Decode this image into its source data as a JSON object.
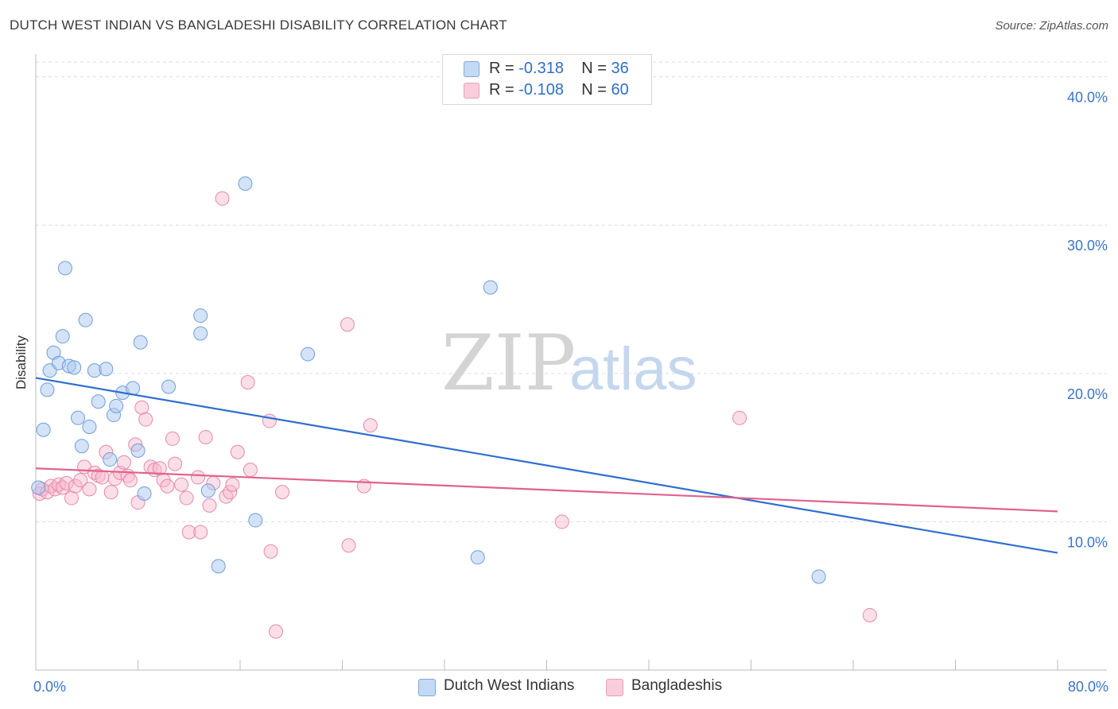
{
  "title": "DUTCH WEST INDIAN VS BANGLADESHI DISABILITY CORRELATION CHART",
  "source": "Source: ZipAtlas.com",
  "watermark": {
    "zip": "ZIP",
    "atlas": "atlas"
  },
  "legend": {
    "series1": {
      "r_label": "R =",
      "r_value": "-0.318",
      "n_label": "N =",
      "n_value": "36"
    },
    "series2": {
      "r_label": "R =",
      "r_value": "-0.108",
      "n_label": "N =",
      "n_value": "60"
    }
  },
  "colors": {
    "blue_fill": "#a9c8f0",
    "blue_stroke": "#6f9fd8",
    "blue_line": "#2f6fcf",
    "pink_fill": "#f6b8cb",
    "pink_stroke": "#e889a8",
    "pink_line": "#e0628e",
    "axis_label": "#3b74c8",
    "grid": "#dcdcdc"
  },
  "chart_data": {
    "type": "scatter",
    "title": "DUTCH WEST INDIAN VS BANGLADESHI DISABILITY CORRELATION CHART",
    "xlabel": "",
    "ylabel": "Disability",
    "xlim": [
      0,
      80
    ],
    "ylim": [
      0,
      41
    ],
    "x_tick_labels": [
      "0.0%",
      "80.0%"
    ],
    "y_ticks": [
      10,
      20,
      30,
      40
    ],
    "y_tick_labels": [
      "10.0%",
      "20.0%",
      "30.0%",
      "40.0%"
    ],
    "grid": true,
    "legend_position": "top-center",
    "series": [
      {
        "name": "Dutch West Indians",
        "color": "#a9c8f0",
        "trend": {
          "x": [
            0,
            80
          ],
          "y": [
            19.7,
            7.9
          ]
        },
        "points": [
          {
            "x": 0.2,
            "y": 12.3
          },
          {
            "x": 0.6,
            "y": 16.2
          },
          {
            "x": 0.9,
            "y": 18.9
          },
          {
            "x": 1.1,
            "y": 20.2
          },
          {
            "x": 1.4,
            "y": 21.4
          },
          {
            "x": 1.8,
            "y": 20.7
          },
          {
            "x": 2.1,
            "y": 22.5
          },
          {
            "x": 2.3,
            "y": 27.1
          },
          {
            "x": 2.6,
            "y": 20.5
          },
          {
            "x": 3.0,
            "y": 20.4
          },
          {
            "x": 3.3,
            "y": 17.0
          },
          {
            "x": 3.6,
            "y": 15.1
          },
          {
            "x": 3.9,
            "y": 23.6
          },
          {
            "x": 4.2,
            "y": 16.4
          },
          {
            "x": 4.6,
            "y": 20.2
          },
          {
            "x": 4.9,
            "y": 18.1
          },
          {
            "x": 5.5,
            "y": 20.3
          },
          {
            "x": 5.8,
            "y": 14.2
          },
          {
            "x": 6.1,
            "y": 17.2
          },
          {
            "x": 6.3,
            "y": 17.8
          },
          {
            "x": 6.8,
            "y": 18.7
          },
          {
            "x": 7.6,
            "y": 19.0
          },
          {
            "x": 8.0,
            "y": 14.8
          },
          {
            "x": 8.2,
            "y": 22.1
          },
          {
            "x": 8.5,
            "y": 11.9
          },
          {
            "x": 10.4,
            "y": 19.1
          },
          {
            "x": 12.9,
            "y": 23.9
          },
          {
            "x": 12.9,
            "y": 22.7
          },
          {
            "x": 13.5,
            "y": 12.1
          },
          {
            "x": 14.3,
            "y": 7.0
          },
          {
            "x": 16.4,
            "y": 32.8
          },
          {
            "x": 17.2,
            "y": 10.1
          },
          {
            "x": 21.3,
            "y": 21.3
          },
          {
            "x": 34.6,
            "y": 7.6
          },
          {
            "x": 35.6,
            "y": 25.8
          },
          {
            "x": 61.3,
            "y": 6.3
          }
        ]
      },
      {
        "name": "Bangladeshis",
        "color": "#f6b8cb",
        "trend": {
          "x": [
            0,
            80
          ],
          "y": [
            13.6,
            10.7
          ]
        },
        "points": [
          {
            "x": 0.3,
            "y": 11.9
          },
          {
            "x": 0.5,
            "y": 12.2
          },
          {
            "x": 0.9,
            "y": 12.0
          },
          {
            "x": 1.2,
            "y": 12.4
          },
          {
            "x": 1.5,
            "y": 12.2
          },
          {
            "x": 1.8,
            "y": 12.5
          },
          {
            "x": 2.1,
            "y": 12.3
          },
          {
            "x": 2.4,
            "y": 12.6
          },
          {
            "x": 2.8,
            "y": 11.6
          },
          {
            "x": 3.1,
            "y": 12.4
          },
          {
            "x": 3.5,
            "y": 12.8
          },
          {
            "x": 3.8,
            "y": 13.7
          },
          {
            "x": 4.2,
            "y": 12.2
          },
          {
            "x": 4.6,
            "y": 13.3
          },
          {
            "x": 4.9,
            "y": 13.1
          },
          {
            "x": 5.2,
            "y": 13.0
          },
          {
            "x": 5.5,
            "y": 14.7
          },
          {
            "x": 5.9,
            "y": 12.0
          },
          {
            "x": 6.2,
            "y": 12.9
          },
          {
            "x": 6.6,
            "y": 13.3
          },
          {
            "x": 6.9,
            "y": 14.0
          },
          {
            "x": 7.2,
            "y": 13.1
          },
          {
            "x": 7.4,
            "y": 12.8
          },
          {
            "x": 7.8,
            "y": 15.2
          },
          {
            "x": 8.0,
            "y": 11.3
          },
          {
            "x": 8.3,
            "y": 17.7
          },
          {
            "x": 8.6,
            "y": 16.9
          },
          {
            "x": 9.0,
            "y": 13.7
          },
          {
            "x": 9.3,
            "y": 13.5
          },
          {
            "x": 9.7,
            "y": 13.6
          },
          {
            "x": 10.0,
            "y": 12.8
          },
          {
            "x": 10.3,
            "y": 12.4
          },
          {
            "x": 10.7,
            "y": 15.6
          },
          {
            "x": 10.9,
            "y": 13.9
          },
          {
            "x": 11.4,
            "y": 12.5
          },
          {
            "x": 11.8,
            "y": 11.6
          },
          {
            "x": 12.0,
            "y": 9.3
          },
          {
            "x": 12.7,
            "y": 13.0
          },
          {
            "x": 12.9,
            "y": 9.3
          },
          {
            "x": 13.3,
            "y": 15.7
          },
          {
            "x": 13.6,
            "y": 11.1
          },
          {
            "x": 13.9,
            "y": 12.6
          },
          {
            "x": 14.6,
            "y": 31.8
          },
          {
            "x": 14.9,
            "y": 11.7
          },
          {
            "x": 15.2,
            "y": 12.0
          },
          {
            "x": 15.4,
            "y": 12.5
          },
          {
            "x": 15.8,
            "y": 14.7
          },
          {
            "x": 16.6,
            "y": 19.4
          },
          {
            "x": 16.8,
            "y": 13.5
          },
          {
            "x": 18.3,
            "y": 16.8
          },
          {
            "x": 18.4,
            "y": 8.0
          },
          {
            "x": 18.8,
            "y": 2.6
          },
          {
            "x": 19.3,
            "y": 12.0
          },
          {
            "x": 24.4,
            "y": 23.3
          },
          {
            "x": 24.5,
            "y": 8.4
          },
          {
            "x": 25.7,
            "y": 12.4
          },
          {
            "x": 26.2,
            "y": 16.5
          },
          {
            "x": 41.2,
            "y": 10.0
          },
          {
            "x": 55.1,
            "y": 17.0
          },
          {
            "x": 65.3,
            "y": 3.7
          }
        ]
      }
    ]
  }
}
